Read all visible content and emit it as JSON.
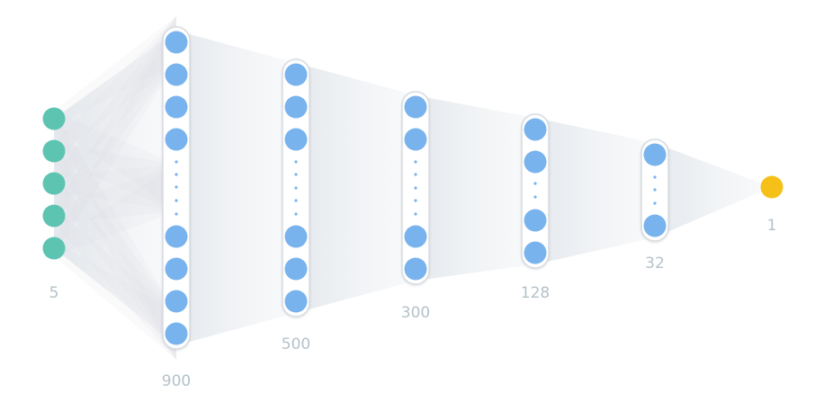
{
  "diagram": {
    "type": "neural-network-architecture",
    "colors": {
      "input_node": "#5dc4b2",
      "hidden_node": "#78b3ee",
      "output_node": "#f5c118",
      "capsule_stroke": "#d7dce1",
      "ellipsis_dot": "#78b3ee",
      "connection": "#d3d9e0",
      "label": "#b4c2c9"
    },
    "layers": [
      {
        "id": "input",
        "label": "5",
        "role": "input",
        "visible_nodes": 5,
        "truncated": false
      },
      {
        "id": "hidden-1",
        "label": "900",
        "role": "hidden",
        "visible_nodes": 8,
        "truncated": true
      },
      {
        "id": "hidden-2",
        "label": "500",
        "role": "hidden",
        "visible_nodes": 6,
        "truncated": true
      },
      {
        "id": "hidden-3",
        "label": "300",
        "role": "hidden",
        "visible_nodes": 4,
        "truncated": true
      },
      {
        "id": "hidden-4",
        "label": "128",
        "role": "hidden",
        "visible_nodes": 4,
        "truncated": true
      },
      {
        "id": "hidden-5",
        "label": "32",
        "role": "hidden",
        "visible_nodes": 2,
        "truncated": true
      },
      {
        "id": "output",
        "label": "1",
        "role": "output",
        "visible_nodes": 1,
        "truncated": false
      }
    ]
  }
}
